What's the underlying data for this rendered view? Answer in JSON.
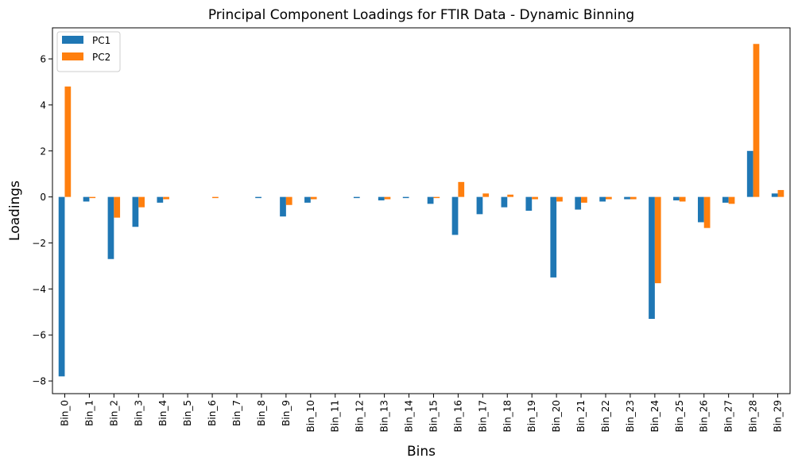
{
  "chart_data": {
    "type": "bar",
    "title": "Principal Component Loadings for FTIR Data - Dynamic Binning",
    "xlabel": "Bins",
    "ylabel": "Loadings",
    "ylim": [
      -8.55,
      7.35
    ],
    "yticks": [
      -8,
      -6,
      -4,
      -2,
      0,
      2,
      4,
      6
    ],
    "grid": false,
    "legend_position": "top-left",
    "categories": [
      "Bin_0",
      "Bin_1",
      "Bin_2",
      "Bin_3",
      "Bin_4",
      "Bin_5",
      "Bin_6",
      "Bin_7",
      "Bin_8",
      "Bin_9",
      "Bin_10",
      "Bin_11",
      "Bin_12",
      "Bin_13",
      "Bin_14",
      "Bin_15",
      "Bin_16",
      "Bin_17",
      "Bin_18",
      "Bin_19",
      "Bin_20",
      "Bin_21",
      "Bin_22",
      "Bin_23",
      "Bin_24",
      "Bin_25",
      "Bin_26",
      "Bin_27",
      "Bin_28",
      "Bin_29"
    ],
    "series": [
      {
        "name": "PC1",
        "color": "#1f77b4",
        "values": [
          -7.8,
          -0.2,
          -2.7,
          -1.3,
          -0.25,
          0.0,
          0.0,
          0.0,
          -0.05,
          -0.85,
          -0.25,
          0.0,
          -0.05,
          -0.15,
          -0.05,
          -0.3,
          -1.65,
          -0.75,
          -0.45,
          -0.6,
          -3.5,
          -0.55,
          -0.2,
          -0.1,
          -5.3,
          -0.15,
          -1.1,
          -0.25,
          2.0,
          0.15
        ]
      },
      {
        "name": "PC2",
        "color": "#ff7f0e",
        "values": [
          4.8,
          -0.05,
          -0.9,
          -0.45,
          -0.1,
          0.0,
          -0.05,
          0.0,
          0.0,
          -0.35,
          -0.1,
          0.0,
          0.0,
          -0.1,
          0.0,
          -0.05,
          0.65,
          0.15,
          0.1,
          -0.1,
          -0.2,
          -0.25,
          -0.1,
          -0.1,
          -3.75,
          -0.2,
          -1.35,
          -0.3,
          6.65,
          0.3
        ]
      }
    ]
  }
}
